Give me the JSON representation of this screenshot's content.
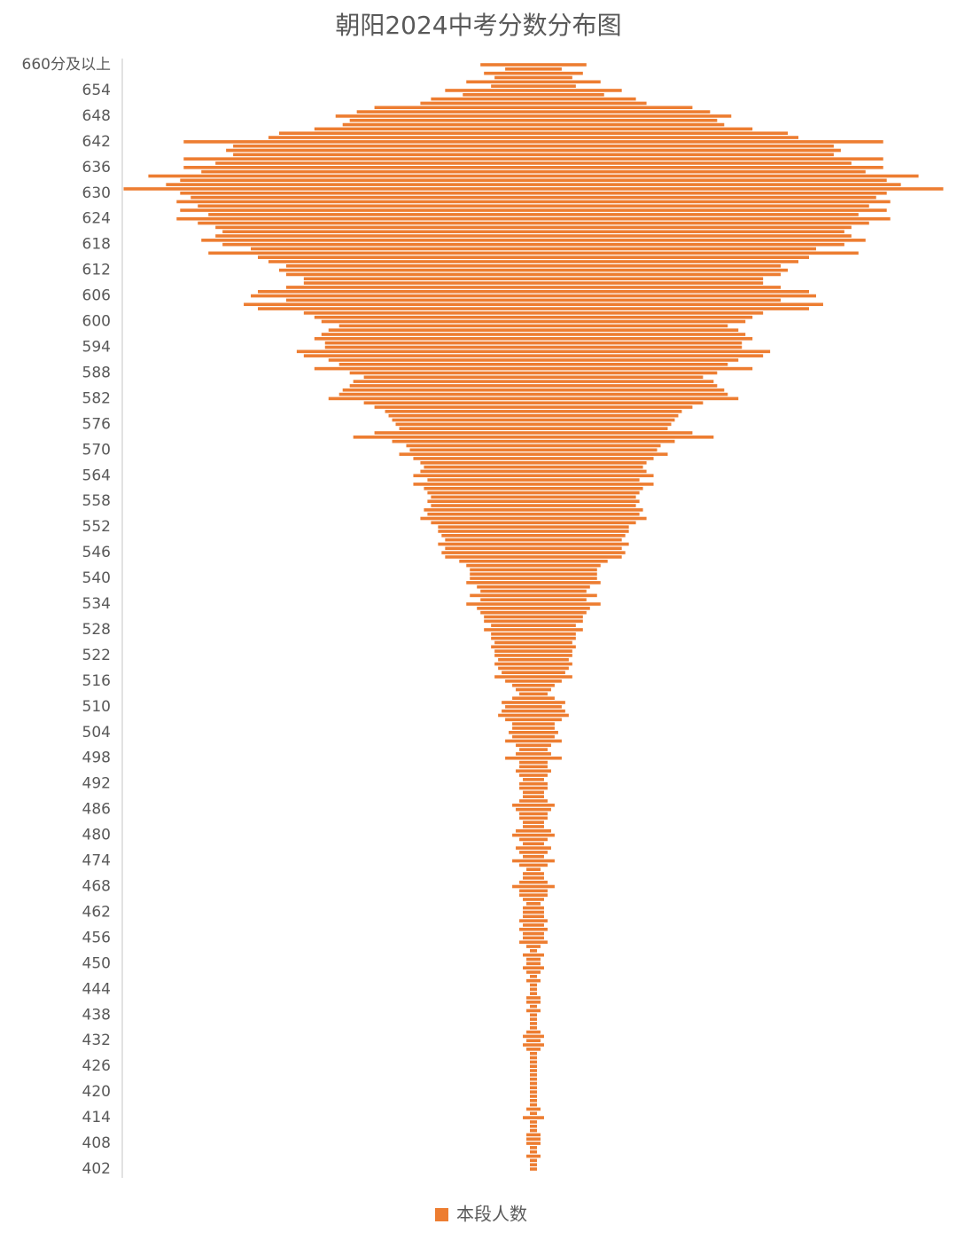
{
  "chart_data": {
    "type": "bar",
    "orientation": "horizontal",
    "align": "center",
    "title": "朝阳2024中考分数分布图",
    "legend": "bottom",
    "categories": [
      "660分及以上",
      null,
      null,
      null,
      null,
      null,
      "654",
      null,
      null,
      null,
      null,
      null,
      "648",
      null,
      null,
      null,
      null,
      null,
      "642",
      null,
      null,
      null,
      null,
      null,
      "636",
      null,
      null,
      null,
      null,
      null,
      "630",
      null,
      null,
      null,
      null,
      null,
      "624",
      null,
      null,
      null,
      null,
      null,
      "618",
      null,
      null,
      null,
      null,
      null,
      "612",
      null,
      null,
      null,
      null,
      null,
      "606",
      null,
      null,
      null,
      null,
      null,
      "600",
      null,
      null,
      null,
      null,
      null,
      "594",
      null,
      null,
      null,
      null,
      null,
      "588",
      null,
      null,
      null,
      null,
      null,
      "582",
      null,
      null,
      null,
      null,
      null,
      "576",
      null,
      null,
      null,
      null,
      null,
      "570",
      null,
      null,
      null,
      null,
      null,
      "564",
      null,
      null,
      null,
      null,
      null,
      "558",
      null,
      null,
      null,
      null,
      null,
      "552",
      null,
      null,
      null,
      null,
      null,
      "546",
      null,
      null,
      null,
      null,
      null,
      "540",
      null,
      null,
      null,
      null,
      null,
      "534",
      null,
      null,
      null,
      null,
      null,
      "528",
      null,
      null,
      null,
      null,
      null,
      "522",
      null,
      null,
      null,
      null,
      null,
      "516",
      null,
      null,
      null,
      null,
      null,
      "510",
      null,
      null,
      null,
      null,
      null,
      "504",
      null,
      null,
      null,
      null,
      null,
      "498",
      null,
      null,
      null,
      null,
      null,
      "492",
      null,
      null,
      null,
      null,
      null,
      "486",
      null,
      null,
      null,
      null,
      null,
      "480",
      null,
      null,
      null,
      null,
      null,
      "474",
      null,
      null,
      null,
      null,
      null,
      "468",
      null,
      null,
      null,
      null,
      null,
      "462",
      null,
      null,
      null,
      null,
      null,
      "456",
      null,
      null,
      null,
      null,
      null,
      "450",
      null,
      null,
      null,
      null,
      null,
      "444",
      null,
      null,
      null,
      null,
      null,
      "438",
      null,
      null,
      null,
      null,
      null,
      "432",
      null,
      null,
      null,
      null,
      null,
      "426",
      null,
      null,
      null,
      null,
      null,
      "420",
      null,
      null,
      null,
      null,
      null,
      "414",
      null,
      null,
      null,
      null,
      null,
      "408",
      null,
      null,
      null,
      null,
      null,
      "402"
    ],
    "series": [
      {
        "name": "本段人数",
        "color": "#ed7d31",
        "values": [
          15,
          8,
          14,
          11,
          19,
          12,
          25,
          20,
          29,
          32,
          45,
          50,
          56,
          52,
          54,
          62,
          72,
          75,
          99,
          85,
          87,
          85,
          99,
          90,
          99,
          94,
          109,
          100,
          104,
          116,
          100,
          97,
          101,
          95,
          100,
          92,
          101,
          95,
          90,
          88,
          90,
          94,
          88,
          80,
          92,
          78,
          75,
          70,
          72,
          70,
          65,
          65,
          70,
          78,
          80,
          70,
          82,
          78,
          65,
          62,
          60,
          55,
          58,
          60,
          62,
          59,
          59,
          67,
          65,
          58,
          55,
          62,
          52,
          48,
          51,
          52,
          54,
          55,
          58,
          48,
          45,
          42,
          41,
          40,
          39,
          38,
          45,
          51,
          40,
          36,
          35,
          38,
          34,
          32,
          31,
          32,
          34,
          30,
          34,
          31,
          30,
          29,
          30,
          29,
          31,
          30,
          32,
          29,
          27,
          27,
          26,
          25,
          27,
          25,
          26,
          25,
          21,
          19,
          18,
          18,
          18,
          19,
          16,
          15,
          18,
          15,
          19,
          16,
          15,
          14,
          14,
          12,
          14,
          12,
          12,
          11,
          12,
          11,
          11,
          10,
          11,
          10,
          9,
          11,
          8,
          6,
          5,
          4,
          6,
          9,
          8,
          9,
          10,
          8,
          6,
          6,
          7,
          6,
          8,
          5,
          4,
          5,
          8,
          4,
          4,
          5,
          4,
          3,
          4,
          4,
          3,
          3,
          4,
          6,
          5,
          4,
          4,
          3,
          3,
          5,
          6,
          4,
          3,
          5,
          4,
          3,
          6,
          4,
          2,
          3,
          3,
          4,
          6,
          4,
          4,
          3,
          2,
          3,
          3,
          3,
          4,
          3,
          4,
          3,
          3,
          4,
          2,
          1,
          3,
          2,
          2,
          3,
          2,
          1,
          2,
          1,
          1,
          1,
          2,
          2,
          1,
          2,
          1,
          1,
          1,
          1,
          2,
          3,
          2,
          3,
          2,
          1,
          1,
          1,
          1,
          1,
          1,
          1,
          1,
          1,
          1,
          1,
          1,
          1,
          2,
          1,
          3,
          1,
          1,
          1,
          2,
          2,
          2,
          1,
          1,
          2,
          1,
          1,
          1
        ]
      }
    ]
  }
}
